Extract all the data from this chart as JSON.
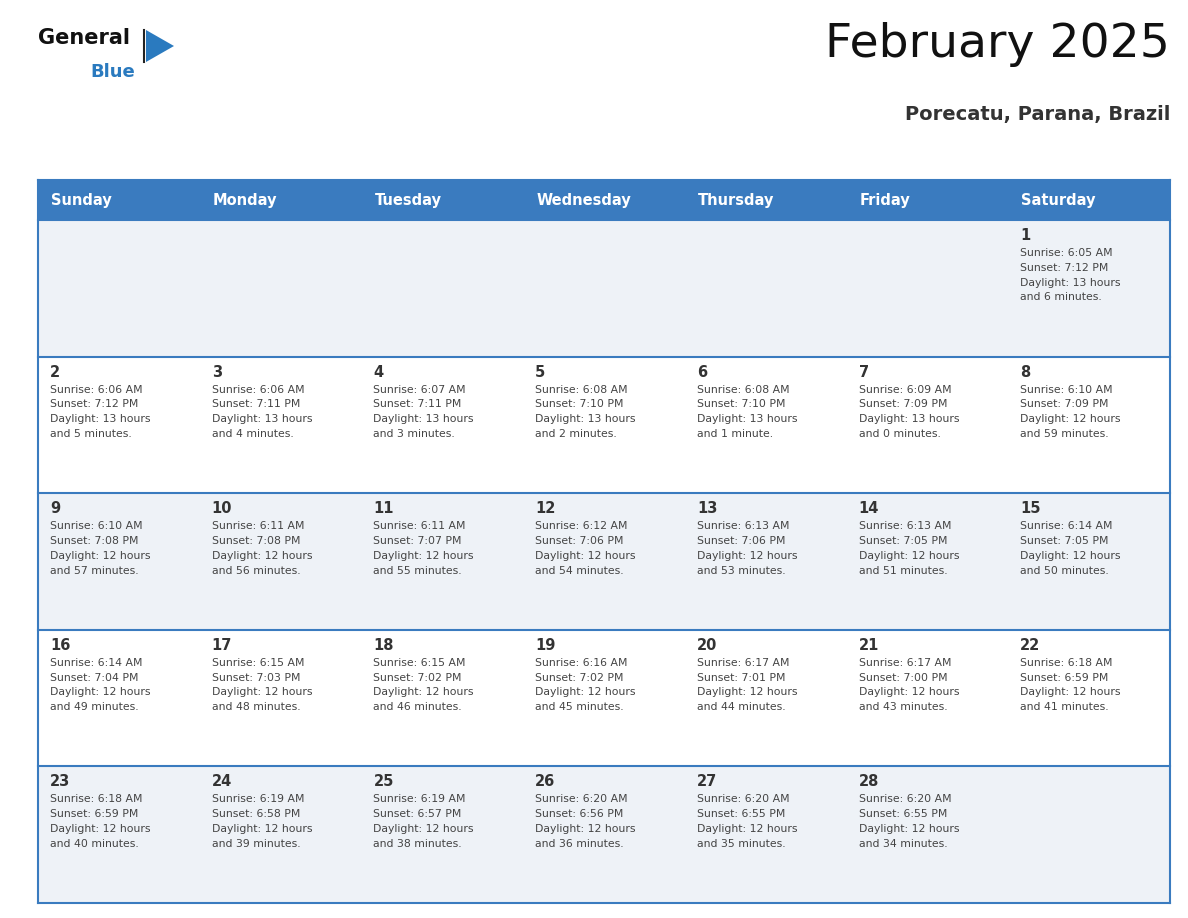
{
  "title": "February 2025",
  "subtitle": "Porecatu, Parana, Brazil",
  "days_of_week": [
    "Sunday",
    "Monday",
    "Tuesday",
    "Wednesday",
    "Thursday",
    "Friday",
    "Saturday"
  ],
  "header_bg": "#3a7bbf",
  "header_text": "#ffffff",
  "cell_bg_odd": "#eef2f7",
  "cell_bg_even": "#ffffff",
  "border_color": "#3a7bbf",
  "text_color": "#444444",
  "day_num_color": "#333333",
  "title_color": "#111111",
  "subtitle_color": "#333333",
  "logo_general_color": "#111111",
  "logo_blue_color": "#2a7abf",
  "logo_triangle_color": "#2a7abf",
  "calendar": [
    [
      {
        "day": null,
        "info": null
      },
      {
        "day": null,
        "info": null
      },
      {
        "day": null,
        "info": null
      },
      {
        "day": null,
        "info": null
      },
      {
        "day": null,
        "info": null
      },
      {
        "day": null,
        "info": null
      },
      {
        "day": 1,
        "info": "Sunrise: 6:05 AM\nSunset: 7:12 PM\nDaylight: 13 hours\nand 6 minutes."
      }
    ],
    [
      {
        "day": 2,
        "info": "Sunrise: 6:06 AM\nSunset: 7:12 PM\nDaylight: 13 hours\nand 5 minutes."
      },
      {
        "day": 3,
        "info": "Sunrise: 6:06 AM\nSunset: 7:11 PM\nDaylight: 13 hours\nand 4 minutes."
      },
      {
        "day": 4,
        "info": "Sunrise: 6:07 AM\nSunset: 7:11 PM\nDaylight: 13 hours\nand 3 minutes."
      },
      {
        "day": 5,
        "info": "Sunrise: 6:08 AM\nSunset: 7:10 PM\nDaylight: 13 hours\nand 2 minutes."
      },
      {
        "day": 6,
        "info": "Sunrise: 6:08 AM\nSunset: 7:10 PM\nDaylight: 13 hours\nand 1 minute."
      },
      {
        "day": 7,
        "info": "Sunrise: 6:09 AM\nSunset: 7:09 PM\nDaylight: 13 hours\nand 0 minutes."
      },
      {
        "day": 8,
        "info": "Sunrise: 6:10 AM\nSunset: 7:09 PM\nDaylight: 12 hours\nand 59 minutes."
      }
    ],
    [
      {
        "day": 9,
        "info": "Sunrise: 6:10 AM\nSunset: 7:08 PM\nDaylight: 12 hours\nand 57 minutes."
      },
      {
        "day": 10,
        "info": "Sunrise: 6:11 AM\nSunset: 7:08 PM\nDaylight: 12 hours\nand 56 minutes."
      },
      {
        "day": 11,
        "info": "Sunrise: 6:11 AM\nSunset: 7:07 PM\nDaylight: 12 hours\nand 55 minutes."
      },
      {
        "day": 12,
        "info": "Sunrise: 6:12 AM\nSunset: 7:06 PM\nDaylight: 12 hours\nand 54 minutes."
      },
      {
        "day": 13,
        "info": "Sunrise: 6:13 AM\nSunset: 7:06 PM\nDaylight: 12 hours\nand 53 minutes."
      },
      {
        "day": 14,
        "info": "Sunrise: 6:13 AM\nSunset: 7:05 PM\nDaylight: 12 hours\nand 51 minutes."
      },
      {
        "day": 15,
        "info": "Sunrise: 6:14 AM\nSunset: 7:05 PM\nDaylight: 12 hours\nand 50 minutes."
      }
    ],
    [
      {
        "day": 16,
        "info": "Sunrise: 6:14 AM\nSunset: 7:04 PM\nDaylight: 12 hours\nand 49 minutes."
      },
      {
        "day": 17,
        "info": "Sunrise: 6:15 AM\nSunset: 7:03 PM\nDaylight: 12 hours\nand 48 minutes."
      },
      {
        "day": 18,
        "info": "Sunrise: 6:15 AM\nSunset: 7:02 PM\nDaylight: 12 hours\nand 46 minutes."
      },
      {
        "day": 19,
        "info": "Sunrise: 6:16 AM\nSunset: 7:02 PM\nDaylight: 12 hours\nand 45 minutes."
      },
      {
        "day": 20,
        "info": "Sunrise: 6:17 AM\nSunset: 7:01 PM\nDaylight: 12 hours\nand 44 minutes."
      },
      {
        "day": 21,
        "info": "Sunrise: 6:17 AM\nSunset: 7:00 PM\nDaylight: 12 hours\nand 43 minutes."
      },
      {
        "day": 22,
        "info": "Sunrise: 6:18 AM\nSunset: 6:59 PM\nDaylight: 12 hours\nand 41 minutes."
      }
    ],
    [
      {
        "day": 23,
        "info": "Sunrise: 6:18 AM\nSunset: 6:59 PM\nDaylight: 12 hours\nand 40 minutes."
      },
      {
        "day": 24,
        "info": "Sunrise: 6:19 AM\nSunset: 6:58 PM\nDaylight: 12 hours\nand 39 minutes."
      },
      {
        "day": 25,
        "info": "Sunrise: 6:19 AM\nSunset: 6:57 PM\nDaylight: 12 hours\nand 38 minutes."
      },
      {
        "day": 26,
        "info": "Sunrise: 6:20 AM\nSunset: 6:56 PM\nDaylight: 12 hours\nand 36 minutes."
      },
      {
        "day": 27,
        "info": "Sunrise: 6:20 AM\nSunset: 6:55 PM\nDaylight: 12 hours\nand 35 minutes."
      },
      {
        "day": 28,
        "info": "Sunrise: 6:20 AM\nSunset: 6:55 PM\nDaylight: 12 hours\nand 34 minutes."
      },
      {
        "day": null,
        "info": null
      }
    ]
  ]
}
